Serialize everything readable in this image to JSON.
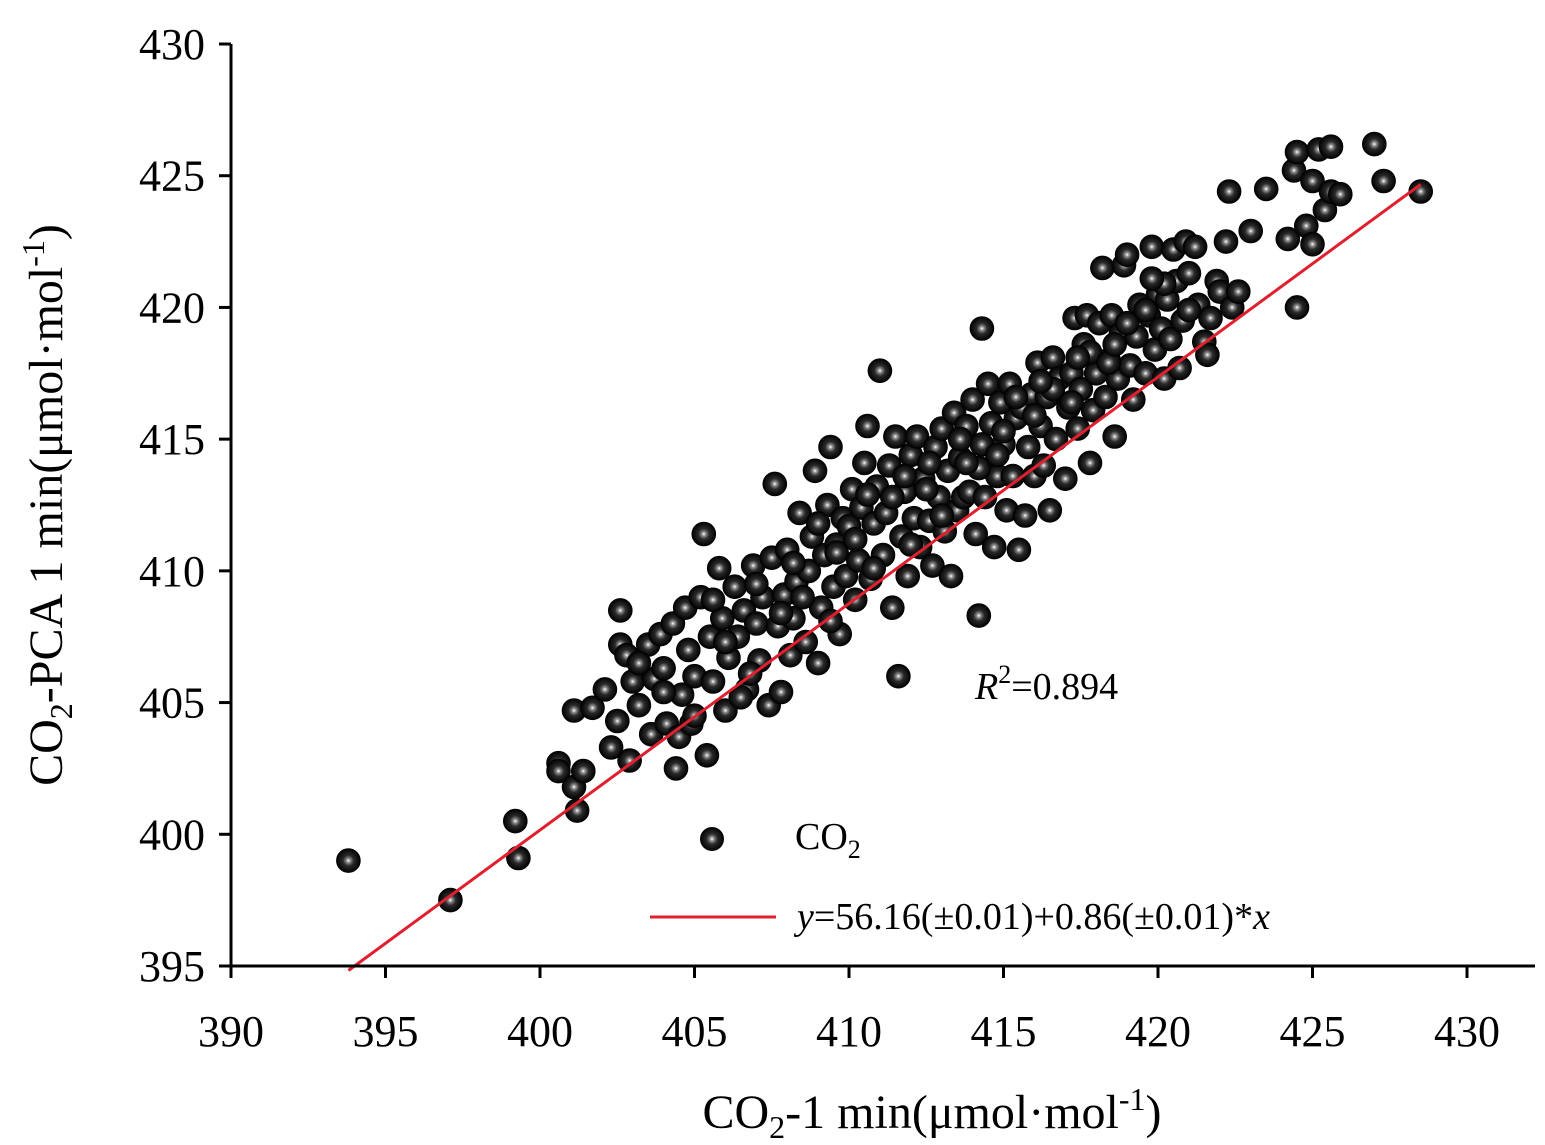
{
  "chart_data": {
    "type": "scatter",
    "title": "",
    "xlabel": {
      "prefix": "CO",
      "sub": "2",
      "mid": "-1 min(μmol·mol",
      "sup": "-1",
      "suffix": ")"
    },
    "ylabel": {
      "prefix": "CO",
      "sub": "2",
      "mid": "-PCA 1 min(μmol·mol",
      "sup": "-1",
      "suffix": ")"
    },
    "xlim": [
      390,
      430
    ],
    "ylim": [
      395,
      430
    ],
    "xticks": [
      390,
      395,
      400,
      405,
      410,
      415,
      420,
      425,
      430
    ],
    "yticks": [
      395,
      400,
      405,
      410,
      415,
      420,
      425,
      430
    ],
    "tick_labels_x": [
      "390",
      "395",
      "400",
      "405",
      "410",
      "415",
      "420",
      "425",
      "430"
    ],
    "tick_labels_y": [
      "395",
      "400",
      "405",
      "410",
      "415",
      "420",
      "425",
      "430"
    ],
    "grid": false,
    "legend": {
      "placement": "bottom-right",
      "entries": [
        {
          "label_prefix": "CO",
          "label_sub": "2",
          "marker": "sphere",
          "color": "#000000"
        },
        {
          "label": "y=56.16(±0.01)+0.86(±0.01)*x",
          "label_parts": [
            "y",
            "=56.16(±0.01)+0.86(±0.01)*",
            "x"
          ],
          "marker": "line",
          "color": "#e0202e"
        }
      ]
    },
    "annotation": {
      "var": "R",
      "sup": "2",
      "rest": "=0.894"
    },
    "fit_line": {
      "intercept": 56.16,
      "slope": 0.86,
      "x_range": [
        393.8,
        428.5
      ],
      "color": "#e0202e"
    },
    "series": [
      {
        "name": "CO2",
        "marker_color": "#000000",
        "points": [
          [
            393.8,
            399.0
          ],
          [
            397.1,
            397.5
          ],
          [
            399.2,
            400.5
          ],
          [
            399.3,
            399.1
          ],
          [
            400.6,
            402.7
          ],
          [
            400.6,
            402.4
          ],
          [
            401.1,
            401.8
          ],
          [
            401.2,
            400.9
          ],
          [
            401.1,
            404.7
          ],
          [
            401.4,
            402.4
          ],
          [
            401.7,
            404.8
          ],
          [
            402.1,
            405.5
          ],
          [
            402.3,
            403.3
          ],
          [
            402.5,
            404.3
          ],
          [
            402.6,
            408.5
          ],
          [
            402.6,
            407.2
          ],
          [
            402.8,
            406.8
          ],
          [
            402.9,
            402.8
          ],
          [
            403.0,
            405.8
          ],
          [
            403.2,
            404.9
          ],
          [
            403.5,
            407.2
          ],
          [
            403.6,
            403.8
          ],
          [
            403.7,
            405.9
          ],
          [
            403.9,
            407.6
          ],
          [
            404.0,
            406.3
          ],
          [
            404.1,
            404.2
          ],
          [
            404.3,
            408.0
          ],
          [
            404.4,
            402.5
          ],
          [
            404.5,
            403.7
          ],
          [
            404.6,
            405.3
          ],
          [
            404.7,
            408.6
          ],
          [
            404.8,
            407.0
          ],
          [
            404.9,
            404.2
          ],
          [
            405.0,
            406.0
          ],
          [
            405.2,
            409.0
          ],
          [
            405.3,
            411.4
          ],
          [
            405.4,
            403.0
          ],
          [
            405.5,
            407.5
          ],
          [
            405.6,
            405.8
          ],
          [
            405.8,
            410.1
          ],
          [
            405.9,
            408.2
          ],
          [
            406.0,
            404.7
          ],
          [
            406.1,
            406.7
          ],
          [
            406.3,
            409.4
          ],
          [
            406.4,
            407.5
          ],
          [
            406.6,
            408.5
          ],
          [
            406.7,
            405.5
          ],
          [
            406.9,
            410.2
          ],
          [
            407.0,
            408.0
          ],
          [
            407.1,
            406.6
          ],
          [
            407.2,
            409.0
          ],
          [
            407.4,
            404.9
          ],
          [
            407.5,
            410.5
          ],
          [
            407.6,
            413.3
          ],
          [
            407.7,
            407.9
          ],
          [
            407.8,
            405.4
          ],
          [
            407.9,
            409.1
          ],
          [
            408.0,
            410.8
          ],
          [
            408.1,
            406.8
          ],
          [
            408.2,
            408.2
          ],
          [
            408.3,
            409.6
          ],
          [
            408.4,
            412.2
          ],
          [
            408.6,
            407.3
          ],
          [
            408.7,
            410.0
          ],
          [
            408.8,
            411.3
          ],
          [
            408.9,
            413.8
          ],
          [
            409.0,
            406.5
          ],
          [
            409.1,
            408.6
          ],
          [
            409.2,
            410.6
          ],
          [
            409.3,
            412.5
          ],
          [
            409.4,
            414.7
          ],
          [
            409.5,
            409.4
          ],
          [
            409.6,
            411.0
          ],
          [
            409.7,
            407.6
          ],
          [
            409.8,
            412.0
          ],
          [
            409.9,
            409.8
          ],
          [
            410.0,
            411.7
          ],
          [
            410.1,
            413.1
          ],
          [
            410.2,
            408.9
          ],
          [
            410.3,
            410.4
          ],
          [
            410.4,
            412.4
          ],
          [
            410.5,
            414.1
          ],
          [
            410.6,
            415.5
          ],
          [
            410.7,
            409.7
          ],
          [
            410.8,
            411.8
          ],
          [
            410.9,
            413.2
          ],
          [
            411.0,
            417.6
          ],
          [
            411.1,
            410.6
          ],
          [
            411.2,
            412.2
          ],
          [
            411.3,
            414.0
          ],
          [
            411.4,
            408.6
          ],
          [
            411.5,
            415.1
          ],
          [
            411.6,
            406.0
          ],
          [
            411.7,
            411.3
          ],
          [
            411.8,
            413.0
          ],
          [
            411.9,
            409.8
          ],
          [
            412.0,
            414.4
          ],
          [
            412.1,
            412.0
          ],
          [
            412.2,
            415.1
          ],
          [
            412.3,
            410.9
          ],
          [
            412.4,
            413.5
          ],
          [
            412.6,
            411.9
          ],
          [
            412.7,
            410.2
          ],
          [
            412.8,
            414.7
          ],
          [
            412.9,
            412.8
          ],
          [
            413.0,
            415.4
          ],
          [
            413.1,
            411.5
          ],
          [
            413.2,
            413.8
          ],
          [
            413.3,
            409.8
          ],
          [
            413.4,
            416.0
          ],
          [
            413.5,
            412.3
          ],
          [
            413.6,
            414.3
          ],
          [
            413.7,
            412.8
          ],
          [
            413.8,
            415.5
          ],
          [
            413.9,
            413.0
          ],
          [
            414.0,
            416.5
          ],
          [
            414.1,
            411.4
          ],
          [
            414.2,
            408.3
          ],
          [
            414.3,
            419.2
          ],
          [
            414.3,
            414.8
          ],
          [
            414.4,
            412.8
          ],
          [
            414.5,
            417.1
          ],
          [
            414.6,
            415.6
          ],
          [
            414.7,
            410.9
          ],
          [
            414.8,
            413.6
          ],
          [
            414.9,
            416.4
          ],
          [
            415.0,
            414.8
          ],
          [
            415.1,
            412.3
          ],
          [
            415.2,
            417.1
          ],
          [
            415.3,
            413.6
          ],
          [
            415.4,
            415.8
          ],
          [
            415.5,
            410.8
          ],
          [
            415.6,
            416.2
          ],
          [
            415.7,
            412.1
          ],
          [
            415.8,
            414.7
          ],
          [
            415.9,
            416.7
          ],
          [
            416.0,
            413.6
          ],
          [
            416.1,
            417.9
          ],
          [
            416.2,
            415.5
          ],
          [
            416.3,
            414.0
          ],
          [
            416.4,
            416.6
          ],
          [
            416.5,
            412.3
          ],
          [
            416.6,
            418.1
          ],
          [
            416.7,
            415.0
          ],
          [
            416.8,
            417.3
          ],
          [
            417.0,
            413.5
          ],
          [
            417.1,
            416.2
          ],
          [
            417.2,
            417.5
          ],
          [
            417.3,
            419.6
          ],
          [
            417.4,
            415.4
          ],
          [
            417.5,
            416.9
          ],
          [
            417.6,
            418.6
          ],
          [
            417.7,
            419.7
          ],
          [
            417.8,
            414.1
          ],
          [
            417.9,
            416.1
          ],
          [
            418.0,
            417.5
          ],
          [
            418.1,
            419.4
          ],
          [
            418.2,
            421.5
          ],
          [
            418.3,
            416.6
          ],
          [
            418.4,
            418.0
          ],
          [
            418.5,
            419.7
          ],
          [
            418.6,
            415.1
          ],
          [
            418.7,
            417.3
          ],
          [
            418.8,
            419.0
          ],
          [
            418.9,
            421.6
          ],
          [
            419.0,
            422.0
          ],
          [
            419.1,
            417.8
          ],
          [
            419.2,
            416.5
          ],
          [
            419.3,
            418.9
          ],
          [
            419.4,
            420.1
          ],
          [
            419.6,
            417.5
          ],
          [
            419.7,
            419.7
          ],
          [
            419.8,
            422.3
          ],
          [
            419.9,
            418.4
          ],
          [
            420.0,
            420.5
          ],
          [
            420.1,
            419.2
          ],
          [
            420.2,
            417.3
          ],
          [
            420.3,
            420.3
          ],
          [
            420.4,
            418.8
          ],
          [
            420.5,
            422.2
          ],
          [
            420.6,
            421.0
          ],
          [
            420.7,
            417.7
          ],
          [
            420.8,
            419.5
          ],
          [
            420.9,
            422.5
          ],
          [
            421.0,
            421.3
          ],
          [
            421.2,
            422.3
          ],
          [
            421.3,
            420.1
          ],
          [
            421.5,
            418.7
          ],
          [
            421.6,
            418.2
          ],
          [
            421.7,
            419.6
          ],
          [
            421.9,
            421.0
          ],
          [
            422.0,
            420.6
          ],
          [
            422.2,
            422.5
          ],
          [
            422.3,
            424.4
          ],
          [
            422.4,
            420.0
          ],
          [
            422.6,
            420.6
          ],
          [
            423.0,
            422.9
          ],
          [
            423.5,
            424.5
          ],
          [
            424.2,
            422.6
          ],
          [
            424.4,
            425.2
          ],
          [
            424.5,
            420.0
          ],
          [
            424.5,
            425.9
          ],
          [
            424.8,
            423.1
          ],
          [
            425.0,
            422.4
          ],
          [
            425.0,
            424.8
          ],
          [
            425.2,
            426.0
          ],
          [
            425.4,
            423.7
          ],
          [
            425.6,
            424.4
          ],
          [
            425.6,
            426.1
          ],
          [
            425.9,
            424.3
          ],
          [
            427.0,
            426.2
          ],
          [
            427.3,
            424.8
          ],
          [
            428.5,
            424.4
          ],
          [
            403.2,
            406.5
          ],
          [
            404.0,
            405.4
          ],
          [
            405.0,
            404.5
          ],
          [
            406.0,
            407.3
          ],
          [
            406.5,
            405.2
          ],
          [
            407.0,
            409.5
          ],
          [
            407.8,
            408.4
          ],
          [
            408.5,
            409.0
          ],
          [
            409.0,
            411.8
          ],
          [
            409.6,
            410.7
          ],
          [
            410.2,
            411.2
          ],
          [
            410.8,
            410.1
          ],
          [
            411.4,
            412.8
          ],
          [
            412.0,
            411.0
          ],
          [
            412.5,
            413.1
          ],
          [
            413.0,
            412.1
          ],
          [
            413.6,
            415.0
          ],
          [
            414.2,
            413.9
          ],
          [
            414.8,
            414.4
          ],
          [
            415.4,
            416.6
          ],
          [
            416.0,
            415.9
          ],
          [
            416.6,
            416.9
          ],
          [
            417.2,
            416.4
          ],
          [
            417.8,
            418.3
          ],
          [
            418.4,
            417.9
          ],
          [
            419.0,
            419.4
          ],
          [
            419.6,
            419.9
          ],
          [
            420.2,
            420.9
          ],
          [
            421.0,
            419.9
          ],
          [
            405.6,
            408.9
          ],
          [
            406.8,
            406.1
          ],
          [
            408.2,
            410.3
          ],
          [
            409.4,
            408.1
          ],
          [
            410.6,
            412.9
          ],
          [
            411.8,
            413.6
          ],
          [
            412.6,
            414.1
          ],
          [
            413.8,
            414.1
          ],
          [
            415.0,
            415.3
          ],
          [
            416.2,
            417.2
          ],
          [
            417.4,
            418.1
          ],
          [
            418.6,
            418.6
          ],
          [
            419.8,
            421.1
          ]
        ]
      }
    ]
  }
}
